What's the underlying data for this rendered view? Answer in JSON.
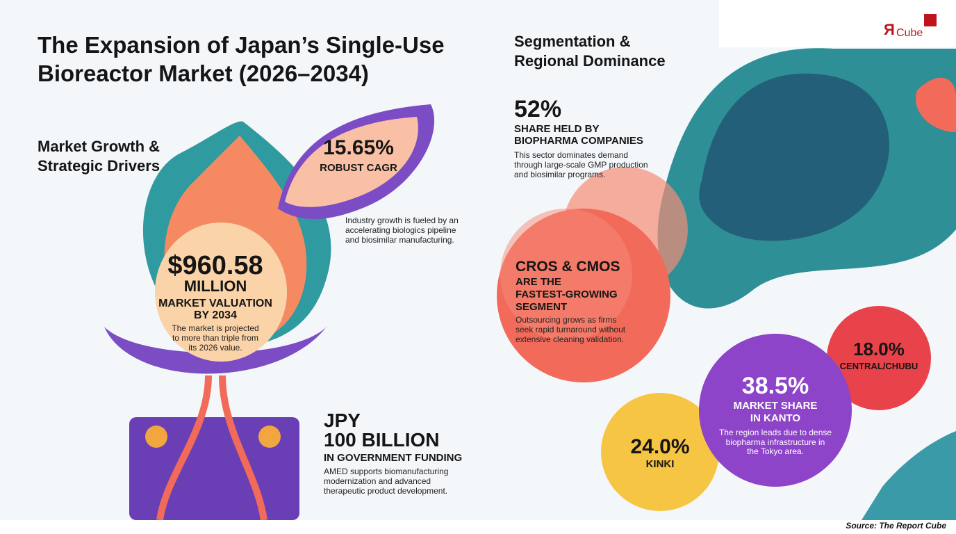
{
  "logo": {
    "mark": "Я",
    "text": "Cube"
  },
  "header": {
    "title": [
      "The Expansion of Japan’s Single-Use",
      "Bioreactor Market (2026–2034)"
    ]
  },
  "left_section": {
    "heading": [
      "Market Growth &",
      "Strategic Drivers"
    ],
    "cagr": {
      "value": "15.65%",
      "label": "ROBUST CAGR",
      "note": [
        "Industry growth is fueled by an",
        "accelerating biologics pipeline",
        "and biosimilar manufacturing."
      ]
    },
    "valuation": {
      "value": "$960.58",
      "unit": "MILLION",
      "label": [
        "MARKET VALUATION",
        "BY 2034"
      ],
      "note": [
        "The market is projected",
        "to more than triple from",
        "its 2026 value."
      ]
    },
    "funding": {
      "value": [
        "JPY",
        "100 BILLION"
      ],
      "label": "IN GOVERNMENT FUNDING",
      "note": [
        "AMED supports biomanufacturing",
        "modernization and advanced",
        "therapeutic product development."
      ]
    }
  },
  "right_section": {
    "heading": [
      "Segmentation &",
      "Regional Dominance"
    ],
    "biopharma": {
      "value": "52%",
      "label": [
        "SHARE HELD BY",
        "BIOPHARMA COMPANIES"
      ],
      "note": [
        "This sector dominates demand",
        "through large-scale GMP production",
        "and biosimilar programs."
      ]
    },
    "cros": {
      "title": "CROS & CMOS",
      "label": [
        "ARE THE",
        "FASTEST-GROWING",
        "SEGMENT"
      ],
      "note": [
        "Outsourcing grows as firms",
        "seek rapid turnaround without",
        "extensive cleaning validation."
      ]
    },
    "kanto": {
      "value": "38.5%",
      "label": [
        "MARKET SHARE",
        "IN KANTO"
      ],
      "note": [
        "The region leads due to dense",
        "biopharma infrastructure in",
        "the Tokyo area."
      ]
    },
    "kinki": {
      "value": "24.0%",
      "label": "KINKI"
    },
    "central": {
      "value": "18.0%",
      "label": "CENTRAL/CHUBU"
    }
  },
  "footer": {
    "source": "Source: The Report Cube"
  }
}
